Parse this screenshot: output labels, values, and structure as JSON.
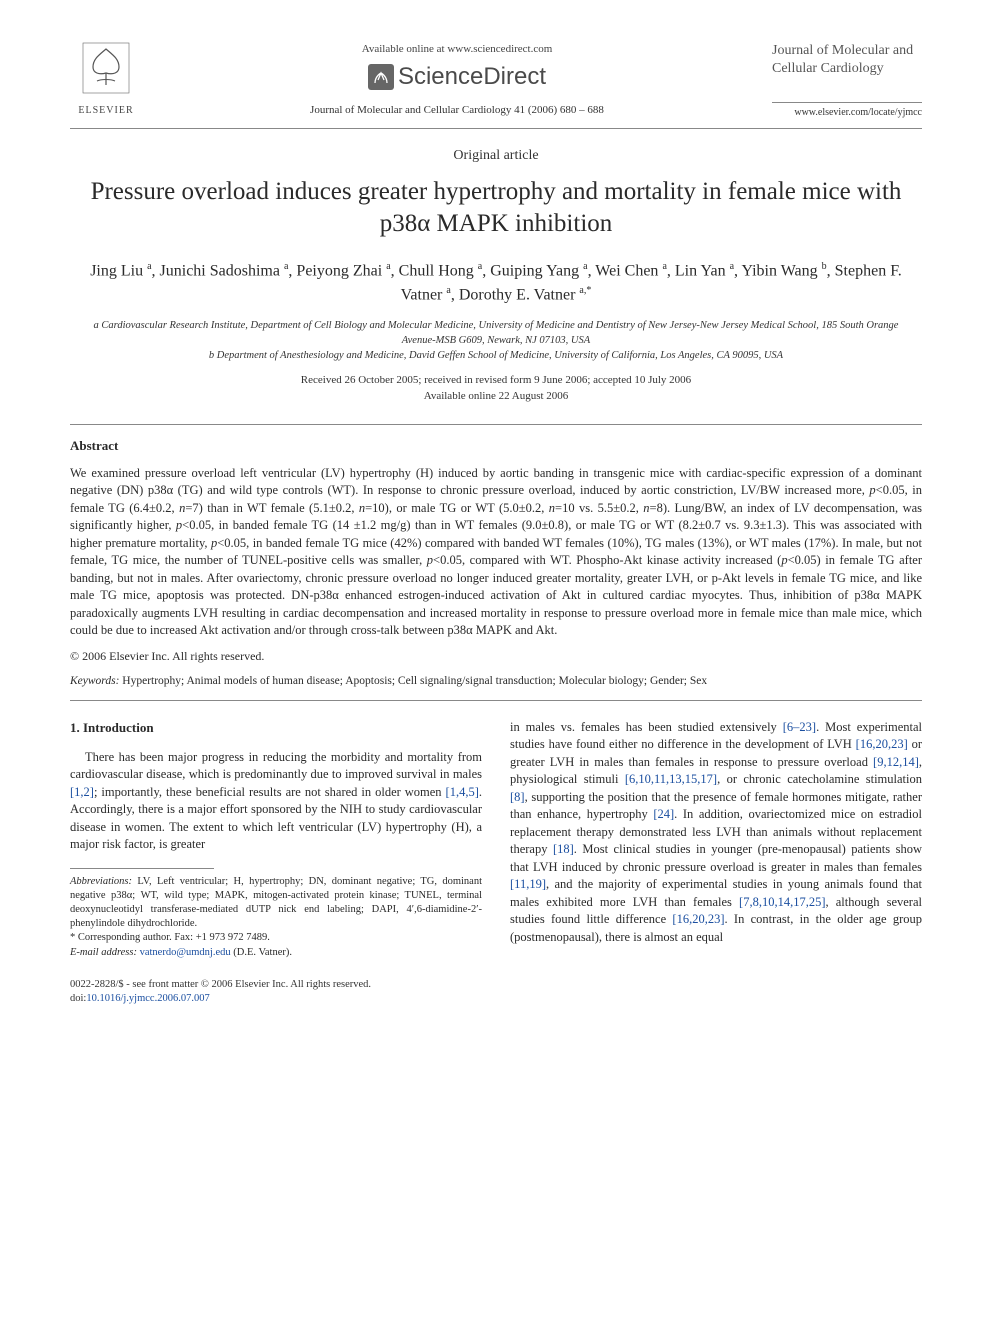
{
  "header": {
    "available_online": "Available online at www.sciencedirect.com",
    "sciencedirect": "ScienceDirect",
    "elsevier_label": "ELSEVIER",
    "journal_ref": "Journal of Molecular and Cellular Cardiology 41 (2006) 680 – 688",
    "journal_name": "Journal of Molecular and Cellular Cardiology",
    "journal_url": "www.elsevier.com/locate/yjmcc"
  },
  "article": {
    "type": "Original article",
    "title": "Pressure overload induces greater hypertrophy and mortality in female mice with p38α MAPK inhibition",
    "authors_html": "Jing Liu <sup>a</sup>, Junichi Sadoshima <sup>a</sup>, Peiyong Zhai <sup>a</sup>, Chull Hong <sup>a</sup>, Guiping Yang <sup>a</sup>, Wei Chen <sup>a</sup>, Lin Yan <sup>a</sup>, Yibin Wang <sup>b</sup>, Stephen F. Vatner <sup>a</sup>, Dorothy E. Vatner <sup>a,*</sup>",
    "affiliations": {
      "a": "a Cardiovascular Research Institute, Department of Cell Biology and Molecular Medicine, University of Medicine and Dentistry of New Jersey-New Jersey Medical School, 185 South Orange Avenue-MSB G609, Newark, NJ 07103, USA",
      "b": "b Department of Anesthesiology and Medicine, David Geffen School of Medicine, University of California, Los Angeles, CA 90095, USA"
    },
    "dates_line1": "Received 26 October 2005; received in revised form 9 June 2006; accepted 10 July 2006",
    "dates_line2": "Available online 22 August 2006"
  },
  "abstract": {
    "heading": "Abstract",
    "text": "We examined pressure overload left ventricular (LV) hypertrophy (H) induced by aortic banding in transgenic mice with cardiac-specific expression of a dominant negative (DN) p38α (TG) and wild type controls (WT). In response to chronic pressure overload, induced by aortic constriction, LV/BW increased more, p<0.05, in female TG (6.4±0.2, n=7) than in WT female (5.1±0.2, n=10), or male TG or WT (5.0±0.2, n=10 vs. 5.5±0.2, n=8). Lung/BW, an index of LV decompensation, was significantly higher, p<0.05, in banded female TG (14 ±1.2 mg/g) than in WT females (9.0±0.8), or male TG or WT (8.2±0.7 vs. 9.3±1.3). This was associated with higher premature mortality, p<0.05, in banded female TG mice (42%) compared with banded WT females (10%), TG males (13%), or WT males (17%). In male, but not female, TG mice, the number of TUNEL-positive cells was smaller, p<0.05, compared with WT. Phospho-Akt kinase activity increased (p<0.05) in female TG after banding, but not in males. After ovariectomy, chronic pressure overload no longer induced greater mortality, greater LVH, or p-Akt levels in female TG mice, and like male TG mice, apoptosis was protected. DN-p38α enhanced estrogen-induced activation of Akt in cultured cardiac myocytes. Thus, inhibition of p38α MAPK paradoxically augments LVH resulting in cardiac decompensation and increased mortality in response to pressure overload more in female mice than male mice, which could be due to increased Akt activation and/or through cross-talk between p38α MAPK and Akt.",
    "copyright": "© 2006 Elsevier Inc. All rights reserved."
  },
  "keywords": {
    "label": "Keywords:",
    "text": " Hypertrophy; Animal models of human disease; Apoptosis; Cell signaling/signal transduction; Molecular biology; Gender; Sex"
  },
  "intro": {
    "heading": "1. Introduction",
    "left_p1_a": "There has been major progress in reducing the morbidity and mortality from cardiovascular disease, which is predominantly due to improved survival in males ",
    "left_cite1": "[1,2]",
    "left_p1_b": "; importantly, these beneficial results are not shared in older women ",
    "left_cite2": "[1,4,5]",
    "left_p1_c": ". Accordingly, there is a major effort sponsored by the NIH to study cardiovascular disease in women. The extent to which left ventricular (LV) hypertrophy (H), a major risk factor, is greater",
    "right_a": "in males vs. females has been studied extensively ",
    "right_c1": "[6–23]",
    "right_b": ". Most experimental studies have found either no difference in the development of LVH ",
    "right_c2": "[16,20,23]",
    "right_c": " or greater LVH in males than females in response to pressure overload ",
    "right_c3": "[9,12,14]",
    "right_d": ", physiological stimuli ",
    "right_c4": "[6,10,11,13,15,17]",
    "right_e": ", or chronic catecholamine stimulation ",
    "right_c5": "[8]",
    "right_f": ", supporting the position that the presence of female hormones mitigate, rather than enhance, hypertrophy ",
    "right_c6": "[24]",
    "right_g": ". In addition, ovariectomized mice on estradiol replacement therapy demonstrated less LVH than animals without replacement therapy ",
    "right_c7": "[18]",
    "right_h": ". Most clinical studies in younger (pre-menopausal) patients show that LVH induced by chronic pressure overload is greater in males than females ",
    "right_c8": "[11,19]",
    "right_i": ", and the majority of experimental studies in young animals found that males exhibited more LVH than females ",
    "right_c9": "[7,8,10,14,17,25]",
    "right_j": ", although several studies found little difference ",
    "right_c10": "[16,20,23]",
    "right_k": ". In contrast, in the older age group (postmenopausal), there is almost an equal"
  },
  "footnotes": {
    "abbrev_label": "Abbreviations:",
    "abbrev_text": " LV, Left ventricular; H, hypertrophy; DN, dominant negative; TG, dominant negative p38α; WT, wild type; MAPK, mitogen-activated protein kinase; TUNEL, terminal deoxynucleotidyl transferase-mediated dUTP nick end labeling; DAPI, 4′,6-diamidine-2′-phenylindole dihydrochloride.",
    "corr": "* Corresponding author. Fax: +1 973 972 7489.",
    "email_label": "E-mail address:",
    "email": " vatnerdo@umdnj.edu",
    "email_tail": " (D.E. Vatner)."
  },
  "footer": {
    "left1": "0022-2828/$ - see front matter © 2006 Elsevier Inc. All rights reserved.",
    "left2": "doi:",
    "doi": "10.1016/j.yjmcc.2006.07.007"
  },
  "colors": {
    "link": "#1b4fa0",
    "text": "#2a2a2a",
    "rule": "#888888",
    "bg": "#ffffff"
  }
}
